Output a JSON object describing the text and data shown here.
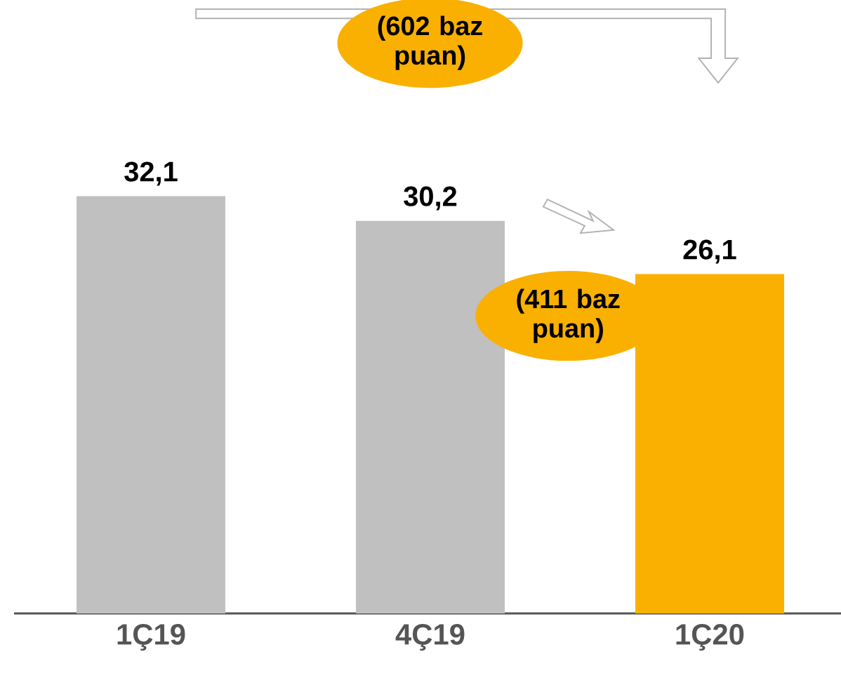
{
  "chart_data": {
    "type": "bar",
    "categories": [
      "1Ç19",
      "4Ç19",
      "1Ç20"
    ],
    "values": [
      32.1,
      30.2,
      26.1
    ],
    "colors": [
      "#c0c0c0",
      "#c0c0c0",
      "#f9b000"
    ],
    "value_labels": [
      "32,1",
      "30,2",
      "26,1"
    ],
    "annotations": [
      "(602 baz puan)",
      "(411 baz puan)"
    ]
  }
}
